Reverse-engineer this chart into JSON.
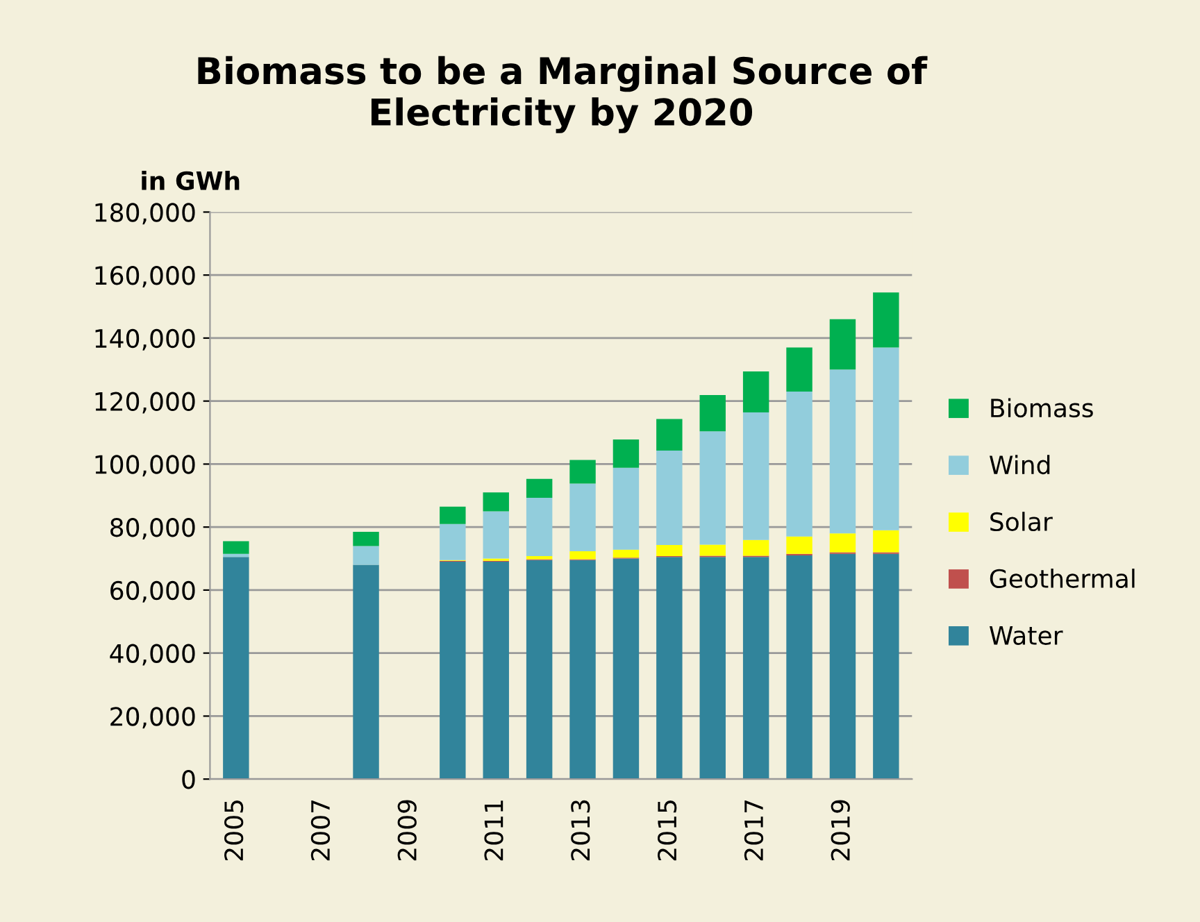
{
  "chart_data": {
    "type": "bar",
    "stacked": true,
    "title": "Biomass to be a Marginal Source of\nElectricity by 2020",
    "ylabel": "in GWh",
    "categories": [
      "2005",
      null,
      "2007",
      null,
      "2009",
      null,
      "2011",
      null,
      "2013",
      null,
      "2015",
      null,
      "2017",
      null,
      "2019",
      null
    ],
    "series": [
      {
        "name": "Water",
        "color": "#31849b",
        "values": [
          70500,
          null,
          null,
          68000,
          null,
          69000,
          69000,
          69500,
          69500,
          70000,
          70500,
          70500,
          70500,
          71000,
          71500,
          71500
        ]
      },
      {
        "name": "Geothermal",
        "color": "#c0504d",
        "values": [
          0,
          null,
          null,
          0,
          null,
          300,
          300,
          300,
          300,
          300,
          300,
          400,
          400,
          500,
          500,
          500
        ]
      },
      {
        "name": "Solar",
        "color": "#ffff00",
        "values": [
          0,
          null,
          null,
          0,
          null,
          200,
          700,
          1000,
          2500,
          2500,
          3500,
          3500,
          5000,
          5500,
          6000,
          7000
        ]
      },
      {
        "name": "Wind",
        "color": "#92cddc",
        "values": [
          1000,
          null,
          null,
          6000,
          null,
          11500,
          15000,
          18500,
          21500,
          26000,
          30000,
          36000,
          40500,
          46000,
          52000,
          58000
        ]
      },
      {
        "name": "Biomass",
        "color": "#00b050",
        "values": [
          4000,
          null,
          null,
          4500,
          null,
          5500,
          6000,
          6000,
          7500,
          9000,
          10000,
          11500,
          13000,
          14000,
          16000,
          17500
        ]
      }
    ],
    "ylim": [
      0,
      180000
    ],
    "yticks": [
      {
        "value": 0,
        "label": "0"
      },
      {
        "value": 20000,
        "label": "20,000"
      },
      {
        "value": 40000,
        "label": "40,000"
      },
      {
        "value": 60000,
        "label": "60,000"
      },
      {
        "value": 80000,
        "label": "80,000"
      },
      {
        "value": 100000,
        "label": "100,000"
      },
      {
        "value": 120000,
        "label": "120,000"
      },
      {
        "value": 140000,
        "label": "140,000"
      },
      {
        "value": 160000,
        "label": "160,000"
      },
      {
        "value": 180000,
        "label": "180,000"
      }
    ],
    "grid": "y",
    "legend": "right"
  }
}
